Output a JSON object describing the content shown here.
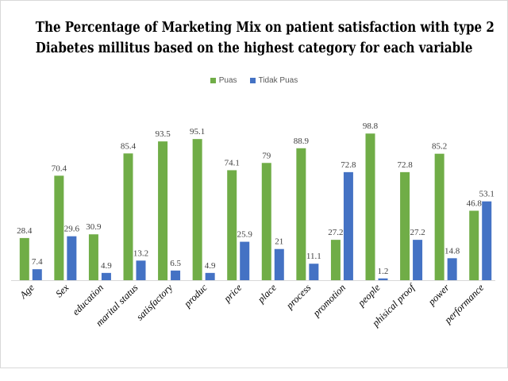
{
  "chart_data": {
    "type": "bar",
    "title_line1": "The Percentage of Marketing Mix on patient satisfaction with type 2",
    "title_line2": "Diabetes millitus based on the highest category for each variable",
    "categories": [
      "Age",
      "Sex",
      "education",
      "marital status",
      "satisfactory",
      "produc",
      "price",
      "place",
      "process",
      "promotion",
      "people",
      "phisical proof",
      "power",
      "performance"
    ],
    "series": [
      {
        "name": "Puas",
        "color": "#70ad47",
        "values": [
          28.4,
          70.4,
          30.9,
          85.4,
          93.5,
          95.1,
          74.1,
          79,
          88.9,
          27.2,
          98.8,
          72.8,
          85.2,
          46.8
        ]
      },
      {
        "name": "Tidak Puas",
        "color": "#4472c4",
        "values": [
          7.4,
          29.6,
          4.9,
          13.2,
          6.5,
          4.9,
          25.9,
          21,
          11.1,
          72.8,
          1.2,
          27.2,
          14.8,
          53.1
        ]
      }
    ],
    "ylim": [
      0,
      100
    ],
    "grid": false,
    "legend": "top-center"
  }
}
